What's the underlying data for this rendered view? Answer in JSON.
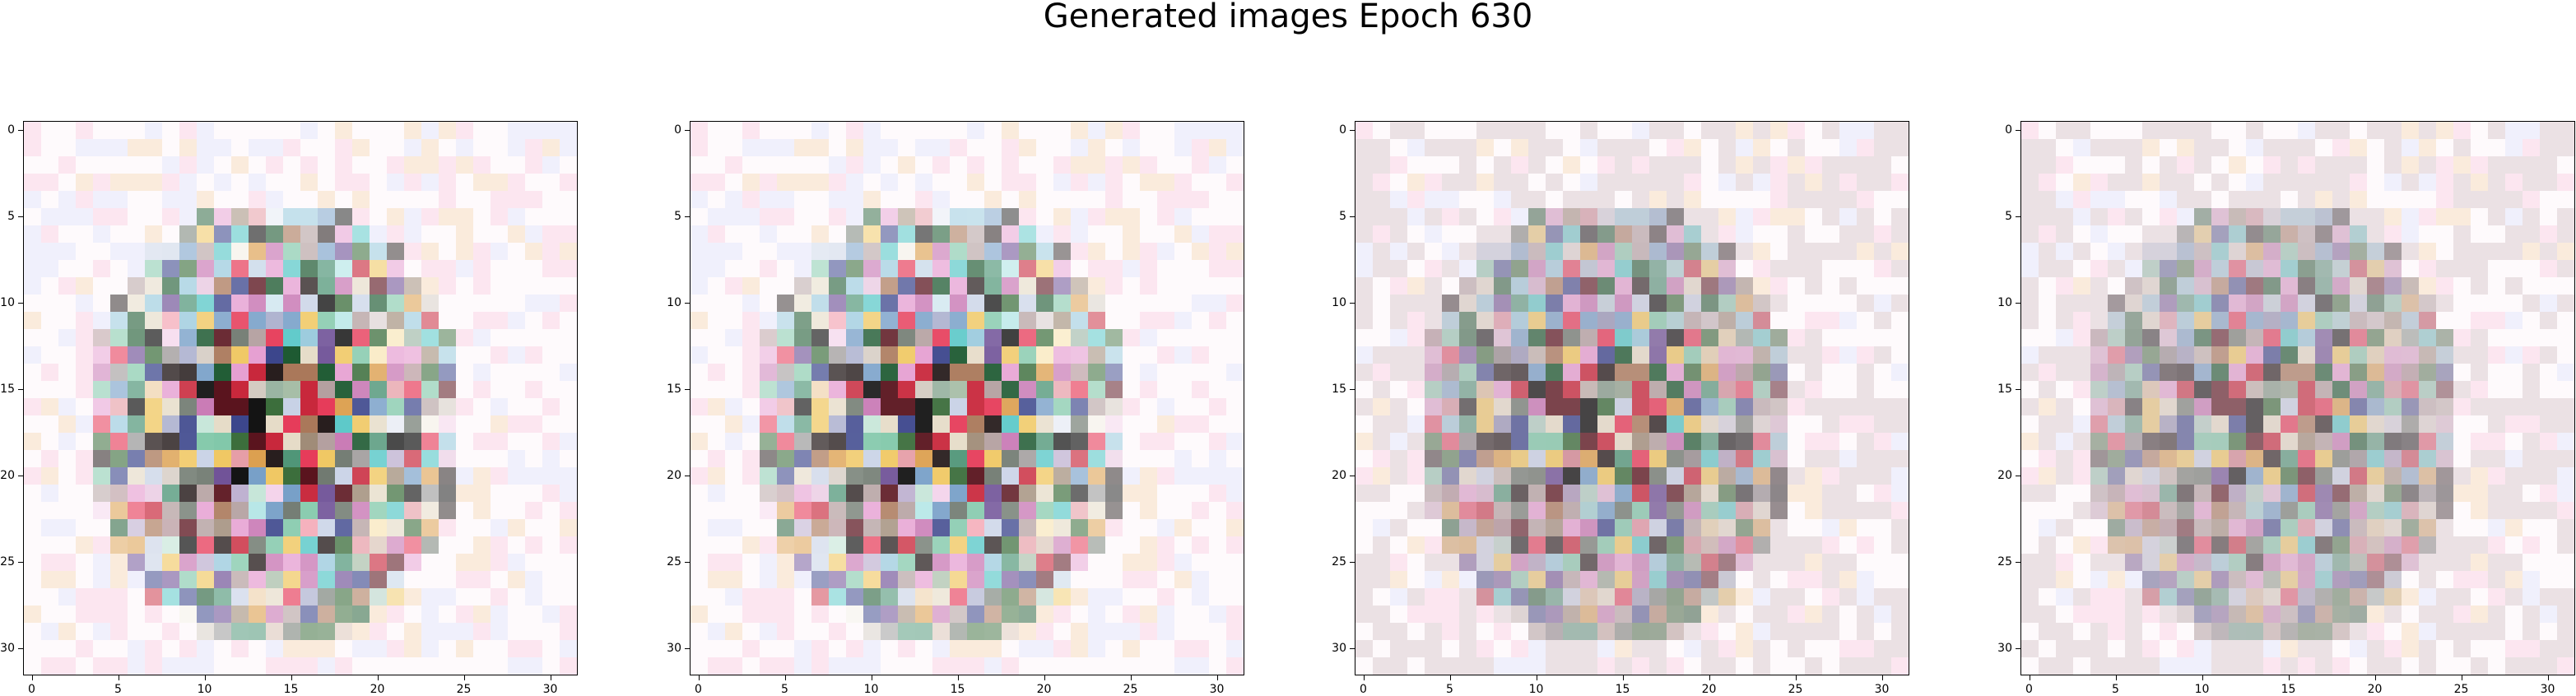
{
  "figure": {
    "title": "Generated images Epoch 630"
  },
  "axes": {
    "x_ticks": [
      "0",
      "5",
      "10",
      "15",
      "20",
      "25",
      "30"
    ],
    "y_ticks": [
      "0",
      "5",
      "10",
      "15",
      "20",
      "25",
      "30"
    ],
    "grid_size": 32,
    "panel_count": 4
  }
}
